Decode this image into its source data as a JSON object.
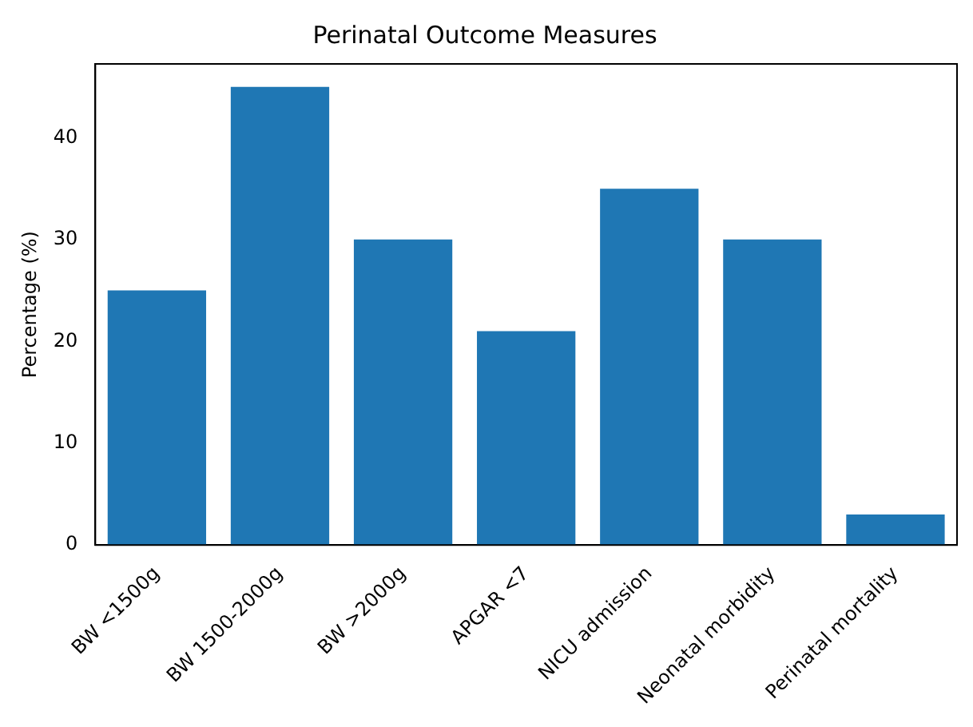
{
  "chart_data": {
    "type": "bar",
    "title": "Perinatal Outcome Measures",
    "ylabel": "Percentage (%)",
    "categories": [
      "BW <1500g",
      "BW 1500-2000g",
      "BW >2000g",
      "APGAR <7",
      "NICU admission",
      "Neonatal morbidity",
      "Perinatal mortality"
    ],
    "values": [
      25,
      45,
      30,
      21,
      35,
      30,
      3
    ],
    "color": "#1f77b4",
    "ylim": [
      0,
      47.25
    ],
    "yticks": [
      0,
      10,
      20,
      30,
      40
    ],
    "grid": false,
    "legend": false
  }
}
